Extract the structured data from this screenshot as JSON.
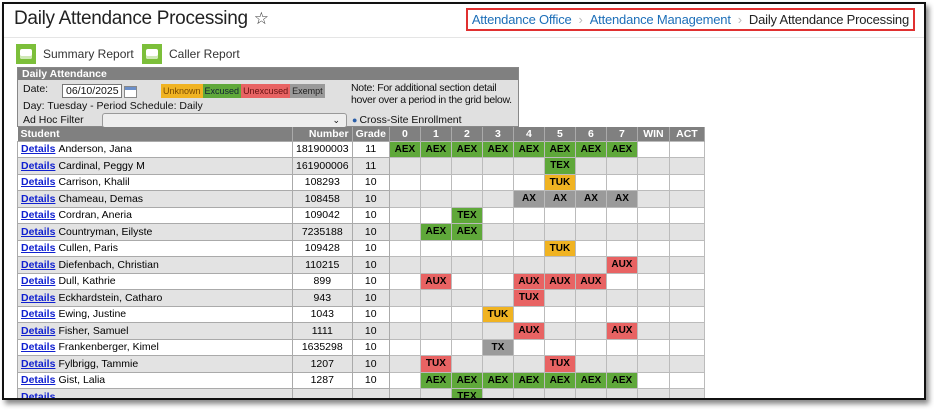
{
  "header": {
    "title": "Daily Attendance Processing",
    "breadcrumbs": [
      "Attendance Office",
      "Attendance Management",
      "Daily Attendance Processing"
    ]
  },
  "toolbar": {
    "summary_report": "Summary Report",
    "caller_report": "Caller Report"
  },
  "panel": {
    "title": "Daily Attendance",
    "date_label": "Date:",
    "date_value": "06/10/2025",
    "day_info": "Day: Tuesday - Period Schedule: Daily",
    "adhoc_label": "Ad Hoc Filter",
    "adhoc_value": "",
    "cross_site": "Cross-Site Enrollment",
    "note": "Note: For additional section detail hover over a period in the grid below.",
    "legend": [
      {
        "label": "Unknown",
        "color": "#f0b322"
      },
      {
        "label": "Excused",
        "color": "#5fa83a"
      },
      {
        "label": "Unexcused",
        "color": "#e86363"
      },
      {
        "label": "Exempt",
        "color": "#9a9a9a"
      }
    ]
  },
  "colors": {
    "excused": "#5fa83a",
    "unknown": "#f0b322",
    "unexcused": "#e86363",
    "exempt": "#9a9a9a"
  },
  "table": {
    "columns": [
      "Student",
      "Number",
      "Grade",
      "0",
      "1",
      "2",
      "3",
      "4",
      "5",
      "6",
      "7",
      "WIN",
      "ACT"
    ],
    "details_label": "Details",
    "rows": [
      {
        "name": "Anderson, Jana",
        "number": "181900003",
        "grade": "11",
        "cells": [
          "AEX",
          "AEX",
          "AEX",
          "AEX",
          "AEX",
          "AEX",
          "AEX",
          "AEX",
          "",
          ""
        ]
      },
      {
        "name": "Cardinal, Peggy M",
        "number": "161900006",
        "grade": "11",
        "cells": [
          "",
          "",
          "",
          "",
          "",
          "TEX",
          "",
          "",
          "",
          ""
        ]
      },
      {
        "name": "Carrison, Khalil",
        "number": "108293",
        "grade": "10",
        "cells": [
          "",
          "",
          "",
          "",
          "",
          "TUK",
          "",
          "",
          "",
          ""
        ]
      },
      {
        "name": "Chameau, Demas",
        "number": "108458",
        "grade": "10",
        "cells": [
          "",
          "",
          "",
          "",
          "AX",
          "AX",
          "AX",
          "AX",
          "",
          ""
        ]
      },
      {
        "name": "Cordran, Aneria",
        "number": "109042",
        "grade": "10",
        "cells": [
          "",
          "",
          "TEX",
          "",
          "",
          "",
          "",
          "",
          "",
          ""
        ]
      },
      {
        "name": "Countryman, Eilyste",
        "number": "7235188",
        "grade": "10",
        "cells": [
          "",
          "AEX",
          "AEX",
          "",
          "",
          "",
          "",
          "",
          "",
          ""
        ]
      },
      {
        "name": "Cullen, Paris",
        "number": "109428",
        "grade": "10",
        "cells": [
          "",
          "",
          "",
          "",
          "",
          "TUK",
          "",
          "",
          "",
          ""
        ]
      },
      {
        "name": "Diefenbach, Christian",
        "number": "110215",
        "grade": "10",
        "cells": [
          "",
          "",
          "",
          "",
          "",
          "",
          "",
          "AUX",
          "",
          ""
        ]
      },
      {
        "name": "Dull, Kathrie",
        "number": "899",
        "grade": "10",
        "cells": [
          "",
          "AUX",
          "",
          "",
          "AUX",
          "AUX",
          "AUX",
          "",
          "",
          ""
        ]
      },
      {
        "name": "Eckhardstein, Catharo",
        "number": "943",
        "grade": "10",
        "cells": [
          "",
          "",
          "",
          "",
          "TUX",
          "",
          "",
          "",
          "",
          ""
        ]
      },
      {
        "name": "Ewing, Justine",
        "number": "1043",
        "grade": "10",
        "cells": [
          "",
          "",
          "",
          "TUK",
          "",
          "",
          "",
          "",
          "",
          ""
        ]
      },
      {
        "name": "Fisher, Samuel",
        "number": "1111",
        "grade": "10",
        "cells": [
          "",
          "",
          "",
          "",
          "AUX",
          "",
          "",
          "AUX",
          "",
          ""
        ]
      },
      {
        "name": "Frankenberger, Kimel",
        "number": "1635298",
        "grade": "10",
        "cells": [
          "",
          "",
          "",
          "TX",
          "",
          "",
          "",
          "",
          "",
          ""
        ]
      },
      {
        "name": "Fylbrigg, Tammie",
        "number": "1207",
        "grade": "10",
        "cells": [
          "",
          "TUX",
          "",
          "",
          "",
          "TUX",
          "",
          "",
          "",
          ""
        ]
      },
      {
        "name": "Gist, Lalia",
        "number": "1287",
        "grade": "10",
        "cells": [
          "",
          "AEX",
          "AEX",
          "AEX",
          "AEX",
          "AEX",
          "AEX",
          "AEX",
          "",
          ""
        ]
      },
      {
        "name": "",
        "number": "",
        "grade": "",
        "cells": [
          "",
          "",
          "TEX",
          "",
          "",
          "",
          "",
          "",
          "",
          ""
        ]
      }
    ]
  }
}
